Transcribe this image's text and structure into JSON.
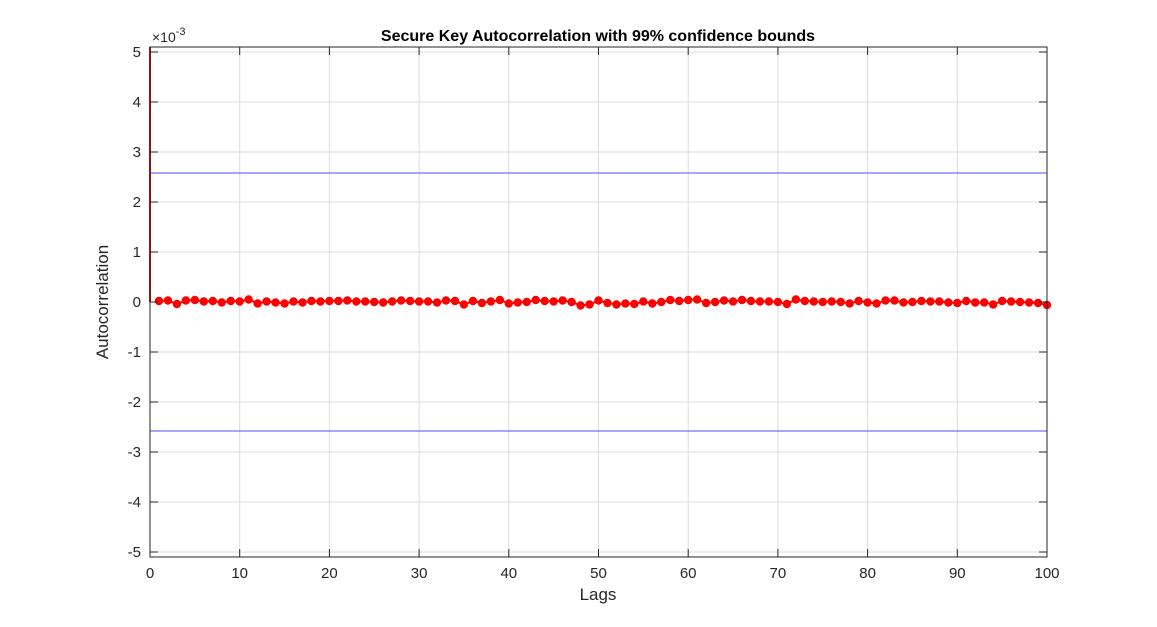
{
  "chart_data": {
    "type": "scatter",
    "title": "Secure Key Autocorrelation with 99% confidence bounds",
    "xlabel": "Lags",
    "ylabel": "Autocorrelation",
    "y_exponent_base": "×10",
    "y_exponent_power": "-3",
    "xlim": [
      0,
      100
    ],
    "ylim": [
      -5.1,
      5.1
    ],
    "xticks": [
      0,
      10,
      20,
      30,
      40,
      50,
      60,
      70,
      80,
      90,
      100
    ],
    "yticks": [
      5,
      4,
      3,
      2,
      1,
      0,
      -1,
      -2,
      -3,
      -4,
      -5
    ],
    "ytick_labels": [
      "5",
      "4",
      "3",
      "2",
      "1",
      "0",
      "-1",
      "-2",
      "-3",
      "-4",
      "-5"
    ],
    "grid": true,
    "confidence_bounds": [
      2.58,
      -2.58
    ],
    "lag0_value": 1000,
    "series": [
      {
        "x": [
          1,
          2,
          3,
          4,
          5,
          6,
          7,
          8,
          9,
          10,
          11,
          12,
          13,
          14,
          15,
          16,
          17,
          18,
          19,
          20,
          21,
          22,
          23,
          24,
          25,
          26,
          27,
          28,
          29,
          30,
          31,
          32,
          33,
          34,
          35,
          36,
          37,
          38,
          39,
          40,
          41,
          42,
          43,
          44,
          45,
          46,
          47,
          48,
          49,
          50,
          51,
          52,
          53,
          54,
          55,
          56,
          57,
          58,
          59,
          60,
          61,
          62,
          63,
          64,
          65,
          66,
          67,
          68,
          69,
          70,
          71,
          72,
          73,
          74,
          75,
          76,
          77,
          78,
          79,
          80,
          81,
          82,
          83,
          84,
          85,
          86,
          87,
          88,
          89,
          90,
          91,
          92,
          93,
          94,
          95,
          96,
          97,
          98,
          99,
          100
        ],
        "values": [
          0.02,
          0.03,
          -0.04,
          0.03,
          0.04,
          0.01,
          0.02,
          -0.01,
          0.02,
          0.01,
          0.05,
          -0.03,
          0.01,
          -0.01,
          -0.03,
          0.01,
          -0.01,
          0.02,
          0.01,
          0.02,
          0.02,
          0.03,
          0.01,
          0.01,
          0.0,
          -0.01,
          0.01,
          0.03,
          0.02,
          0.01,
          0.01,
          -0.01,
          0.03,
          0.02,
          -0.05,
          0.02,
          -0.02,
          0.01,
          0.04,
          -0.03,
          -0.01,
          0.0,
          0.04,
          0.02,
          0.01,
          0.03,
          0.0,
          -0.07,
          -0.05,
          0.03,
          -0.02,
          -0.05,
          -0.03,
          -0.04,
          0.01,
          -0.03,
          0.0,
          0.04,
          0.02,
          0.04,
          0.05,
          -0.02,
          0.0,
          0.03,
          0.01,
          0.04,
          0.02,
          0.01,
          0.01,
          0.0,
          -0.04,
          0.05,
          0.02,
          0.01,
          0.0,
          0.01,
          0.0,
          -0.03,
          0.02,
          -0.01,
          -0.03,
          0.03,
          0.03,
          -0.01,
          0.0,
          0.02,
          0.01,
          0.01,
          -0.01,
          -0.02,
          0.02,
          -0.01,
          -0.01,
          -0.05,
          0.02,
          0.01,
          0.0,
          -0.01,
          -0.02,
          -0.06
        ]
      }
    ],
    "colors": {
      "data": "#ff0000",
      "bounds": "#4d4dff",
      "grid": "#dcdcdc",
      "axes": "#262626"
    }
  }
}
